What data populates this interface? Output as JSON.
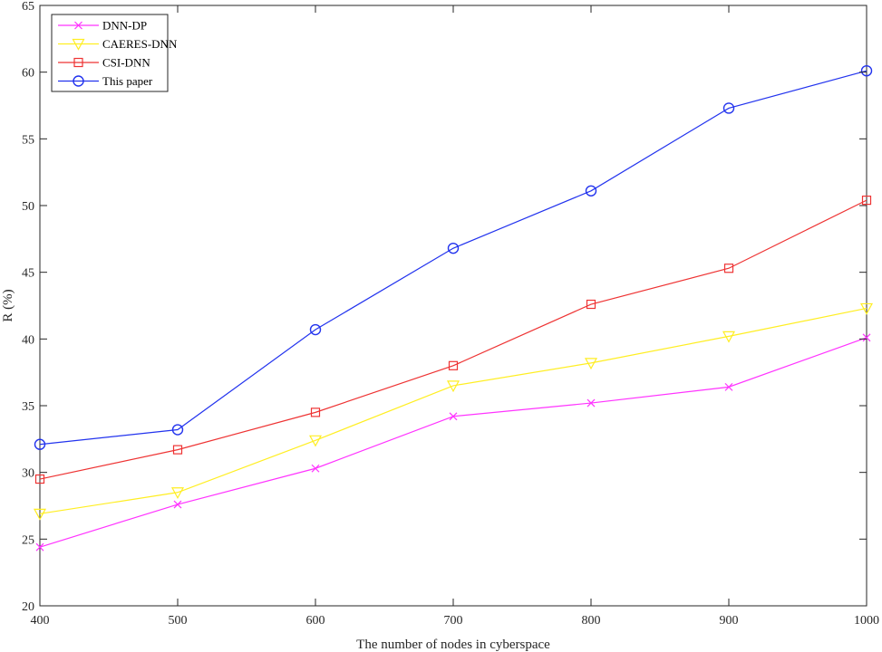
{
  "chart_data": {
    "type": "line",
    "title": "",
    "xlabel": "The number of nodes in cyberspace",
    "ylabel": "R (%)",
    "x": [
      400,
      500,
      600,
      700,
      800,
      900,
      1000
    ],
    "xlim": [
      400,
      1000
    ],
    "ylim": [
      20,
      65
    ],
    "xticks": [
      400,
      500,
      600,
      700,
      800,
      900,
      1000
    ],
    "yticks": [
      20,
      25,
      30,
      35,
      40,
      45,
      50,
      55,
      60,
      65
    ],
    "grid": false,
    "legend_position": "top-left",
    "series": [
      {
        "name": "DNN-DP",
        "color": "#ff33ff",
        "marker": "x",
        "values": [
          24.4,
          27.6,
          30.3,
          34.2,
          35.2,
          36.4,
          40.1
        ]
      },
      {
        "name": "CAERES-DNN",
        "color": "#ffee22",
        "marker": "triangle-down",
        "values": [
          26.9,
          28.5,
          32.4,
          36.5,
          38.2,
          40.2,
          42.3
        ]
      },
      {
        "name": "CSI-DNN",
        "color": "#ee3333",
        "marker": "square",
        "values": [
          29.5,
          31.7,
          34.5,
          38.0,
          42.6,
          45.3,
          50.4
        ]
      },
      {
        "name": "This paper",
        "color": "#2233ee",
        "marker": "circle",
        "values": [
          32.1,
          33.2,
          40.7,
          46.8,
          51.1,
          57.3,
          60.1
        ]
      }
    ]
  }
}
